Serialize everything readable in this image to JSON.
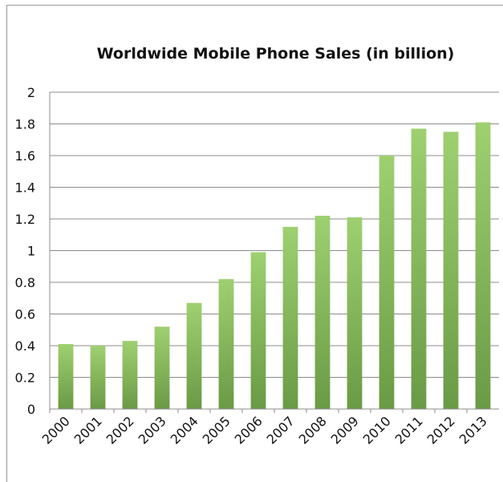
{
  "chart_data": {
    "type": "bar",
    "title": "Worldwide Mobile Phone Sales (in billion)",
    "xlabel": "",
    "ylabel": "",
    "categories": [
      "2000",
      "2001",
      "2002",
      "2003",
      "2004",
      "2005",
      "2006",
      "2007",
      "2008",
      "2009",
      "2010",
      "2011",
      "2012",
      "2013"
    ],
    "values": [
      0.41,
      0.4,
      0.43,
      0.52,
      0.67,
      0.82,
      0.99,
      1.15,
      1.22,
      1.21,
      1.6,
      1.77,
      1.75,
      1.81
    ],
    "ylim": [
      0,
      2
    ],
    "yticks": [
      "0",
      "0.2",
      "0.4",
      "0.6",
      "0.8",
      "1",
      "1.2",
      "1.4",
      "1.6",
      "1.8",
      "2"
    ],
    "grid": true,
    "legend": "none",
    "colors": {
      "bar_top": "#9ed071",
      "bar_bottom": "#6a9a45",
      "grid": "#8c8c8c"
    }
  }
}
